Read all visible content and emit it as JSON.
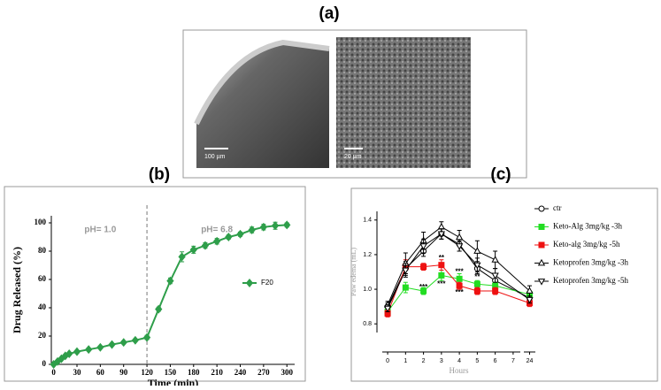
{
  "panel_a": {
    "label": "(a)",
    "scale_bars": [
      "100 µm",
      "20 µm"
    ]
  },
  "chart_data": [
    {
      "type": "line",
      "panel_label": "(b)",
      "xlabel": "Time (min)",
      "ylabel": "Drug Released (%)",
      "x": [
        0,
        5,
        10,
        15,
        20,
        30,
        45,
        60,
        75,
        90,
        105,
        120,
        135,
        150,
        165,
        180,
        195,
        210,
        225,
        240,
        255,
        270,
        285,
        300
      ],
      "series": [
        {
          "name": "F20",
          "color": "#2e9e4a",
          "marker": "diamond",
          "filled": true,
          "values": [
            0,
            2,
            4,
            6,
            7.5,
            9,
            10.5,
            12,
            14,
            15.5,
            17,
            19,
            39,
            59,
            76,
            81,
            84,
            87,
            90,
            92,
            95,
            97,
            98,
            98.5
          ],
          "errors": [
            0.5,
            0.5,
            0.8,
            0.8,
            0.8,
            1,
            1,
            1,
            1,
            1,
            1,
            1.5,
            1.5,
            2,
            3.5,
            2.5,
            2,
            2,
            1.5,
            1.5,
            2,
            2,
            2.5,
            1.5
          ]
        }
      ],
      "xlim": [
        -3,
        310
      ],
      "ylim": [
        0,
        105
      ],
      "xticks": [
        0,
        30,
        60,
        90,
        120,
        150,
        180,
        210,
        240,
        270,
        300
      ],
      "yticks": [
        0,
        20,
        40,
        60,
        80,
        100
      ],
      "vline": 120,
      "annotations": [
        {
          "text": "pH= 1.0",
          "x": 60,
          "y": 95
        },
        {
          "text": "pH= 6.8",
          "x": 210,
          "y": 95
        }
      ],
      "legend": "right"
    },
    {
      "type": "line",
      "panel_label": "(c)",
      "xlabel": "Hours",
      "ylabel": "Paw edema (mL)",
      "x": [
        0,
        1,
        2,
        3,
        4,
        5,
        6,
        24
      ],
      "series": [
        {
          "name": "ctr",
          "color": "#000000",
          "marker": "circle",
          "filled": false,
          "values": [
            0.9,
            1.12,
            1.22,
            1.32,
            1.26,
            1.12,
            1.05,
            0.95
          ],
          "errors": [
            0.02,
            0.04,
            0.03,
            0.03,
            0.04,
            0.03,
            0.03,
            0.02
          ]
        },
        {
          "name": "Keto-Alg 3mg/kg -3h",
          "color": "#22dd22",
          "marker": "square",
          "filled": true,
          "values": [
            0.87,
            1.01,
            0.99,
            1.08,
            1.06,
            1.03,
            1.02,
            0.97
          ],
          "errors": [
            0.02,
            0.03,
            0.02,
            0.03,
            0.03,
            0.02,
            0.02,
            0.02
          ]
        },
        {
          "name": "Keto-alg 3mg/kg -5h",
          "color": "#ee1111",
          "marker": "square",
          "filled": true,
          "values": [
            0.86,
            1.13,
            1.13,
            1.14,
            1.02,
            0.99,
            0.99,
            0.92
          ],
          "errors": [
            0.02,
            0.04,
            0.02,
            0.03,
            0.02,
            0.02,
            0.02,
            0.02
          ]
        },
        {
          "name": "Ketoprofen 3mg/kg -3h",
          "color": "#000000",
          "marker": "triangle-up",
          "filled": false,
          "values": [
            0.91,
            1.15,
            1.28,
            1.36,
            1.3,
            1.22,
            1.17,
            0.99
          ],
          "errors": [
            0.02,
            0.06,
            0.05,
            0.03,
            0.04,
            0.06,
            0.05,
            0.03
          ]
        },
        {
          "name": "Ketoprofen 3mg/kg -5h",
          "color": "#000000",
          "marker": "triangle-down",
          "filled": false,
          "values": [
            0.89,
            1.11,
            1.25,
            1.32,
            1.25,
            1.14,
            1.08,
            0.94
          ],
          "errors": [
            0.02,
            0.04,
            0.04,
            0.03,
            0.03,
            0.04,
            0.04,
            0.02
          ]
        }
      ],
      "xlim": [
        -0.3,
        24.3
      ],
      "axis_break": [
        7.4,
        23.7
      ],
      "ylim": [
        0.75,
        1.45
      ],
      "xticks": [
        0,
        1,
        2,
        3,
        4,
        5,
        6,
        7,
        24
      ],
      "yticks": [
        {
          "value": 0.8,
          "label": "0.8"
        },
        {
          "value": 1.0,
          "label": "1.0"
        },
        {
          "value": 1.2,
          "label": "1.2"
        },
        {
          "value": 1.4,
          "label": "1.4"
        }
      ],
      "annotations": [
        {
          "text": "**",
          "x": 3,
          "y": 1.18
        },
        {
          "text": "***",
          "x": 2,
          "y": 1.01
        },
        {
          "text": "***",
          "x": 3,
          "y": 1.03
        },
        {
          "text": "***",
          "x": 4,
          "y": 1.1
        },
        {
          "text": "***",
          "x": 4,
          "y": 0.98
        },
        {
          "text": "**",
          "x": 5,
          "y": 1.07
        }
      ],
      "legend": "right"
    }
  ]
}
